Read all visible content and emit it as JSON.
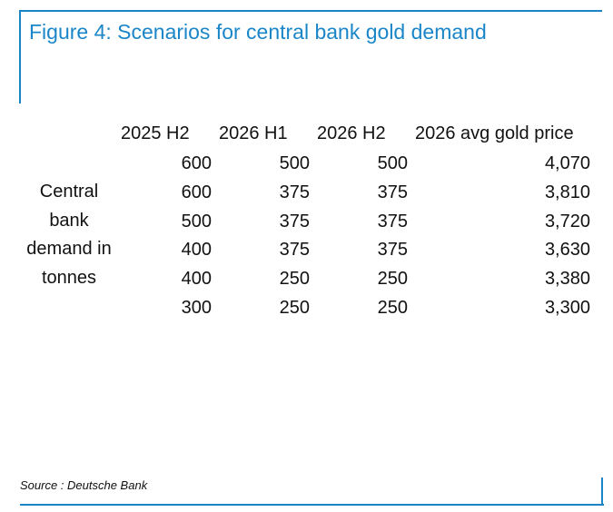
{
  "title": "Figure 4: Scenarios for central bank gold demand",
  "source": "Source : Deutsche Bank",
  "chart_data": {
    "type": "table",
    "columns": [
      "2025 H2",
      "2026 H1",
      "2026 H2",
      "2026 avg gold price"
    ],
    "row_label_lines": [
      "Central",
      "bank",
      "demand in",
      "tonnes"
    ],
    "rows": [
      [
        "600",
        "500",
        "500",
        "4,070"
      ],
      [
        "600",
        "375",
        "375",
        "3,810"
      ],
      [
        "500",
        "375",
        "375",
        "3,720"
      ],
      [
        "400",
        "375",
        "375",
        "3,630"
      ],
      [
        "400",
        "250",
        "250",
        "3,380"
      ],
      [
        "300",
        "250",
        "250",
        "3,300"
      ]
    ]
  }
}
